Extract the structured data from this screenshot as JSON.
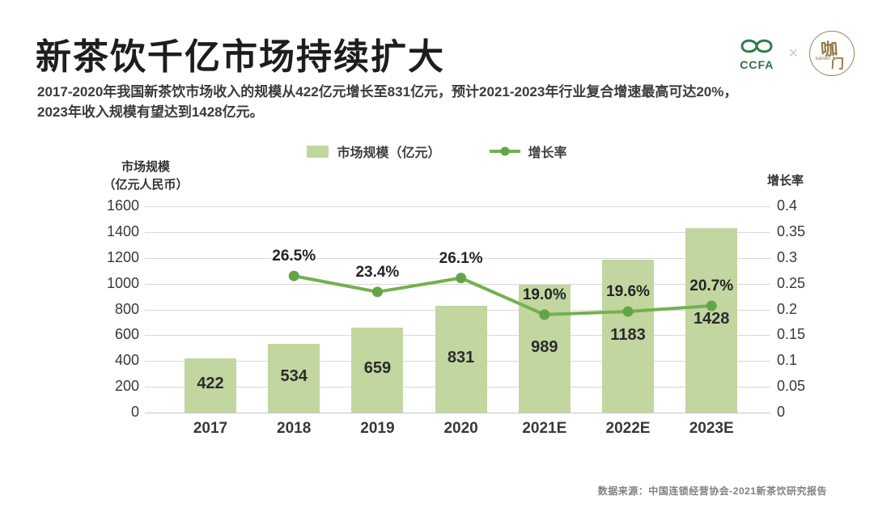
{
  "header": {
    "title": "新茶饮千亿市场持续扩大",
    "subtitle_line1": "2017-2020年我国新茶饮市场收入的规模从422亿元增长至831亿元，预计2021-2023年行业复合增速最高可达20%，",
    "subtitle_line2": "2023年收入规模有望达到1428亿元。",
    "logos": {
      "ccfa_text": "CCFA",
      "separator": "×",
      "kamen_char1": "咖",
      "kamen_char2": "门",
      "kamen_pinyin": "kāmén"
    }
  },
  "chart_data": {
    "type": "bar",
    "categories": [
      "2017",
      "2018",
      "2019",
      "2020",
      "2021E",
      "2022E",
      "2023E"
    ],
    "series": [
      {
        "name": "市场规模（亿元）",
        "type": "bar",
        "values": [
          422,
          534,
          659,
          831,
          989,
          1183,
          1428
        ],
        "color": "#c2d6a0",
        "value_label_color": "#2b2b2b"
      },
      {
        "name": "增长率",
        "type": "line",
        "values": [
          null,
          0.265,
          0.234,
          0.261,
          0.19,
          0.196,
          0.207
        ],
        "point_labels": [
          "",
          "26.5%",
          "23.4%",
          "26.1%",
          "19.0%",
          "19.6%",
          "20.7%"
        ],
        "color": "#74b050",
        "dot_color": "#63a546"
      }
    ],
    "left_axis": {
      "title": [
        "市场规模",
        "（亿元人民币）"
      ],
      "min": 0,
      "max": 1600,
      "step": 200,
      "ticks": [
        "1600",
        "1400",
        "1200",
        "1000",
        "800",
        "600",
        "400",
        "200",
        "0"
      ]
    },
    "right_axis": {
      "title": "增长率",
      "min": 0,
      "max": 0.4,
      "step": 0.05,
      "ticks": [
        "0.4",
        "0.35",
        "0.3",
        "0.25",
        "0.2",
        "0.15",
        "0.1",
        "0.05",
        "0"
      ]
    },
    "grid": true,
    "legend_position": "top-center"
  },
  "footer": {
    "source": "数据来源：中国连锁经营协会-2021新茶饮研究报告"
  }
}
